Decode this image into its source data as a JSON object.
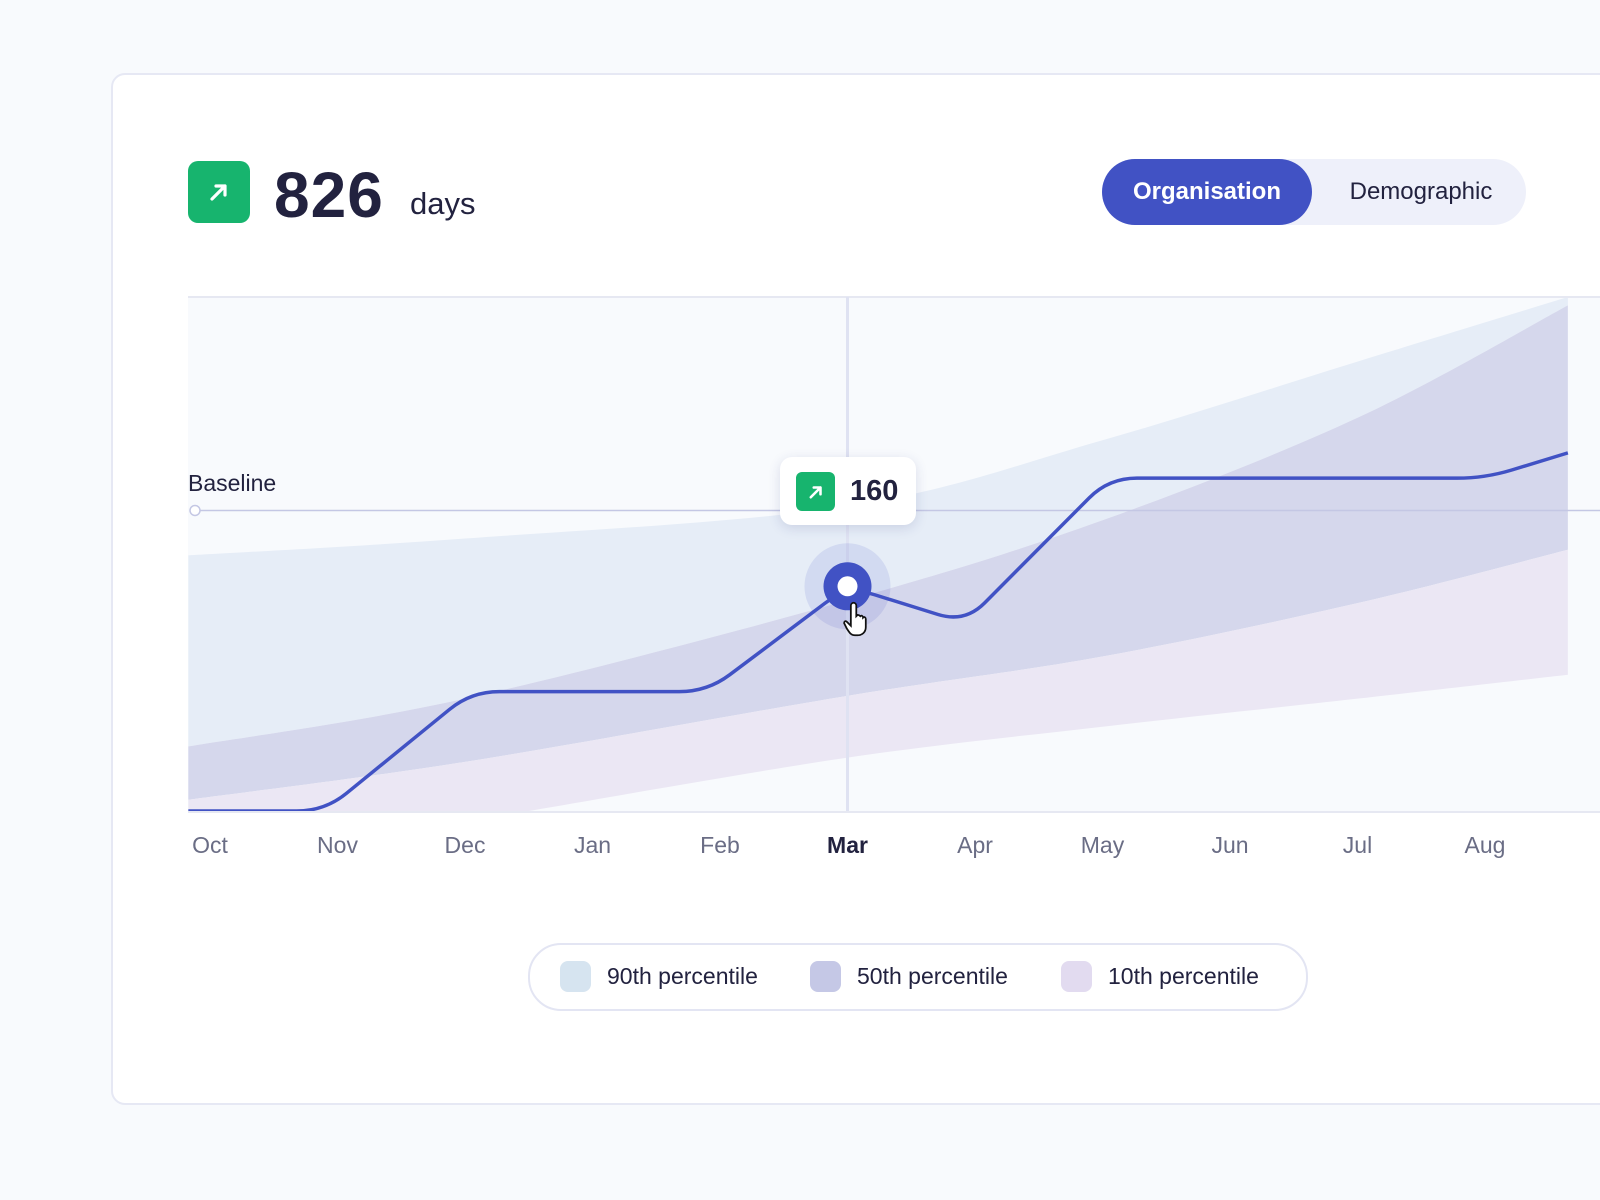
{
  "header": {
    "value": "826",
    "unit": "days",
    "trend_icon": "arrow-up-right-icon",
    "trend_color": "#17b46e"
  },
  "toggle": {
    "options": [
      "Organisation",
      "Demographic"
    ],
    "selected": "Organisation",
    "accent": "#4152c4"
  },
  "tooltip": {
    "value": "160",
    "icon": "arrow-up-right-icon",
    "month": "Mar"
  },
  "chart_data": {
    "type": "line",
    "title": "",
    "xlabel": "",
    "ylabel": "",
    "categories": [
      "Oct",
      "Nov",
      "Dec",
      "Jan",
      "Feb",
      "Mar",
      "Apr",
      "May",
      "Jun",
      "Jul",
      "Aug"
    ],
    "highlighted_category": "Mar",
    "baseline": {
      "label": "Baseline",
      "value": 214
    },
    "ylim": [
      0,
      366
    ],
    "grid": false,
    "series": [
      {
        "points": [
          [
            -0.17,
            0
          ],
          [
            0.9,
            0
          ],
          [
            2.05,
            85
          ],
          [
            3.9,
            85
          ],
          [
            5,
            160
          ],
          [
            5.92,
            134
          ],
          [
            7.05,
            237
          ],
          [
            10,
            237
          ],
          [
            10.65,
            255
          ]
        ],
        "color": "#4152c4"
      }
    ],
    "bands": [
      {
        "name": "90th percentile",
        "color": "#e6edf7",
        "swatch": "#d6e4f0",
        "upper": [
          [
            -0.17,
            182
          ],
          [
            2,
            194
          ],
          [
            5,
            217
          ],
          [
            7,
            264
          ],
          [
            9,
            320
          ],
          [
            10.65,
            366
          ]
        ],
        "lower": [
          [
            -0.17,
            46
          ],
          [
            2,
            80
          ],
          [
            5,
            150
          ],
          [
            7,
            207
          ],
          [
            9,
            280
          ],
          [
            10.65,
            360
          ]
        ]
      },
      {
        "name": "50th percentile",
        "color": "#d5d7ec",
        "swatch": "#c5c8e6",
        "upper": [
          [
            -0.17,
            46
          ],
          [
            2,
            80
          ],
          [
            5,
            150
          ],
          [
            7,
            207
          ],
          [
            9,
            280
          ],
          [
            10.65,
            360
          ]
        ],
        "lower": [
          [
            -0.17,
            8
          ],
          [
            2,
            35
          ],
          [
            5,
            82
          ],
          [
            7,
            110
          ],
          [
            9,
            148
          ],
          [
            10.65,
            186
          ]
        ]
      },
      {
        "name": "10th percentile",
        "color": "#ebe7f4",
        "swatch": "#e2dbf0",
        "upper": [
          [
            -0.17,
            8
          ],
          [
            2,
            35
          ],
          [
            5,
            82
          ],
          [
            7,
            110
          ],
          [
            9,
            148
          ],
          [
            10.65,
            186
          ]
        ],
        "lower": [
          [
            2.5,
            0
          ],
          [
            5,
            38
          ],
          [
            7,
            60
          ],
          [
            9,
            80
          ],
          [
            10.65,
            97
          ]
        ]
      }
    ],
    "legend": {
      "placement": "bottom"
    }
  }
}
